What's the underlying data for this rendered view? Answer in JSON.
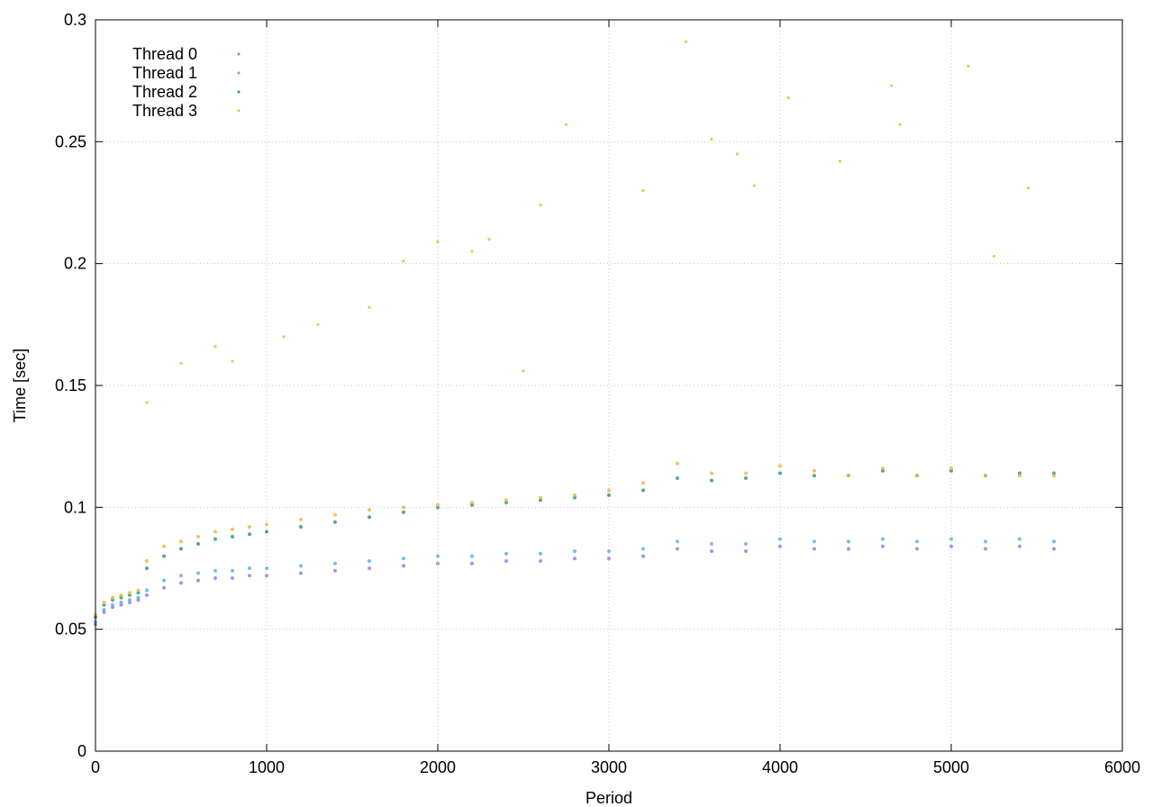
{
  "chart_data": {
    "type": "scatter",
    "title": "",
    "xlabel": "Period",
    "ylabel": "Time [sec]",
    "xlim": [
      0,
      6000
    ],
    "ylim": [
      0,
      0.3
    ],
    "xticks": [
      "0",
      "1000",
      "2000",
      "3000",
      "4000",
      "5000",
      "6000"
    ],
    "yticks": [
      "0",
      "0.05",
      "0.1",
      "0.15",
      "0.2",
      "0.25",
      "0.3"
    ],
    "grid": true,
    "legend_position": "top-left",
    "series": [
      {
        "name": "Thread 0",
        "color": "#9a7fe0",
        "x": [
          0,
          50,
          100,
          150,
          200,
          250,
          300,
          400,
          500,
          600,
          700,
          800,
          900,
          1000,
          1200,
          1400,
          1600,
          1800,
          2000,
          2200,
          2400,
          2600,
          2800,
          3000,
          3200,
          3400,
          3600,
          3800,
          4000,
          4200,
          4400,
          4600,
          4800,
          5000,
          5200,
          5400,
          5600
        ],
        "y": [
          0.052,
          0.057,
          0.059,
          0.06,
          0.061,
          0.062,
          0.064,
          0.067,
          0.069,
          0.07,
          0.071,
          0.071,
          0.072,
          0.072,
          0.073,
          0.074,
          0.075,
          0.076,
          0.077,
          0.077,
          0.078,
          0.078,
          0.079,
          0.079,
          0.08,
          0.083,
          0.082,
          0.082,
          0.084,
          0.083,
          0.083,
          0.084,
          0.083,
          0.084,
          0.083,
          0.084,
          0.083
        ]
      },
      {
        "name": "Thread 1",
        "color": "#5fb0e6",
        "x": [
          0,
          50,
          100,
          150,
          200,
          250,
          300,
          400,
          500,
          600,
          700,
          800,
          900,
          1000,
          1200,
          1400,
          1600,
          1800,
          2000,
          2200,
          2400,
          2600,
          2800,
          3000,
          3200,
          3400,
          3600,
          3800,
          4000,
          4200,
          4400,
          4600,
          4800,
          5000,
          5200,
          5400,
          5600
        ],
        "y": [
          0.053,
          0.058,
          0.06,
          0.061,
          0.062,
          0.063,
          0.066,
          0.07,
          0.072,
          0.073,
          0.074,
          0.074,
          0.075,
          0.075,
          0.076,
          0.077,
          0.078,
          0.079,
          0.08,
          0.08,
          0.081,
          0.081,
          0.082,
          0.082,
          0.083,
          0.086,
          0.085,
          0.085,
          0.087,
          0.086,
          0.086,
          0.087,
          0.086,
          0.087,
          0.086,
          0.087,
          0.086
        ]
      },
      {
        "name": "Thread 2",
        "color": "#2f9e6e",
        "x": [
          0,
          50,
          100,
          150,
          200,
          250,
          300,
          400,
          500,
          600,
          700,
          800,
          900,
          1000,
          1200,
          1400,
          1600,
          1800,
          2000,
          2200,
          2400,
          2600,
          2800,
          3000,
          3200,
          3400,
          3600,
          3800,
          4000,
          4200,
          4400,
          4600,
          4800,
          5000,
          5200,
          5400,
          5600
        ],
        "y": [
          0.055,
          0.06,
          0.062,
          0.063,
          0.064,
          0.065,
          0.075,
          0.08,
          0.083,
          0.085,
          0.087,
          0.088,
          0.089,
          0.09,
          0.092,
          0.094,
          0.096,
          0.098,
          0.1,
          0.101,
          0.102,
          0.103,
          0.104,
          0.105,
          0.107,
          0.112,
          0.111,
          0.112,
          0.114,
          0.113,
          0.113,
          0.115,
          0.113,
          0.115,
          0.113,
          0.114,
          0.114
        ]
      },
      {
        "name": "Thread 3",
        "color": "#efb840",
        "x": [
          0,
          50,
          100,
          150,
          200,
          250,
          300,
          400,
          500,
          600,
          700,
          800,
          900,
          1000,
          1200,
          1400,
          1600,
          1800,
          2000,
          2200,
          2400,
          2600,
          2800,
          3000,
          3200,
          3400,
          3600,
          3800,
          4000,
          4200,
          4400,
          4600,
          4800,
          5000,
          5200,
          5400,
          5600
        ],
        "y": [
          0.056,
          0.061,
          0.063,
          0.064,
          0.065,
          0.066,
          0.078,
          0.084,
          0.086,
          0.088,
          0.09,
          0.091,
          0.092,
          0.093,
          0.095,
          0.097,
          0.099,
          0.1,
          0.101,
          0.102,
          0.103,
          0.104,
          0.105,
          0.107,
          0.11,
          0.118,
          0.114,
          0.114,
          0.117,
          0.115,
          0.113,
          0.116,
          0.113,
          0.116,
          0.113,
          0.113,
          0.113
        ]
      }
    ],
    "outliers": {
      "color": "#efb840",
      "x": [
        300,
        500,
        700,
        800,
        1100,
        1300,
        1600,
        1800,
        2000,
        2200,
        2300,
        2500,
        2600,
        2750,
        3200,
        3450,
        3600,
        3750,
        3850,
        4050,
        4350,
        4650,
        4700,
        5100,
        5250,
        5450
      ],
      "y": [
        0.143,
        0.159,
        0.166,
        0.16,
        0.17,
        0.175,
        0.182,
        0.201,
        0.209,
        0.205,
        0.21,
        0.156,
        0.224,
        0.257,
        0.23,
        0.291,
        0.251,
        0.245,
        0.232,
        0.268,
        0.242,
        0.273,
        0.257,
        0.281,
        0.203,
        0.231
      ]
    }
  }
}
